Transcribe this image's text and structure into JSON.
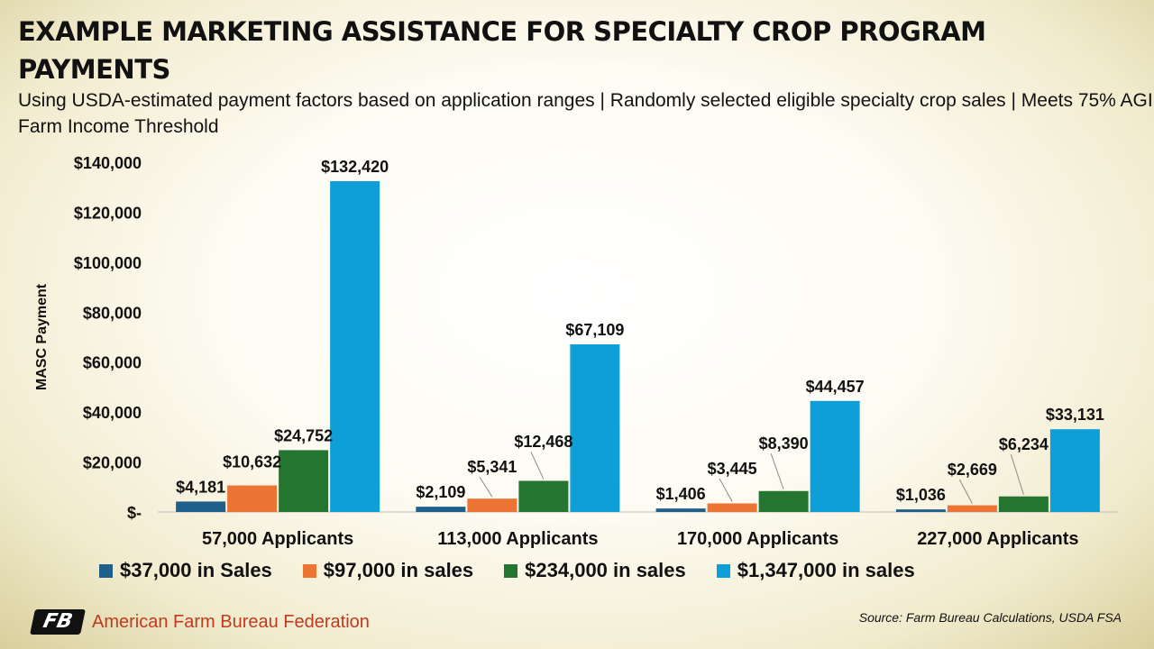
{
  "header": {
    "title": "EXAMPLE MARKETING ASSISTANCE FOR SPECIALTY CROP PROGRAM PAYMENTS",
    "subtitle": "Using USDA-estimated payment factors based on application ranges | Randomly selected eligible specialty crop sales | Meets 75% AGI Farm Income Threshold"
  },
  "chart_data": {
    "type": "bar",
    "title": "EXAMPLE MARKETING ASSISTANCE FOR SPECIALTY CROP PROGRAM PAYMENTS",
    "ylabel": "MASC Payment",
    "xlabel": "",
    "ylim": [
      0,
      140000
    ],
    "yticks": [
      0,
      20000,
      40000,
      60000,
      80000,
      100000,
      120000,
      140000
    ],
    "ytick_labels": [
      "$-",
      "$20,000",
      "$40,000",
      "$60,000",
      "$80,000",
      "$100,000",
      "$120,000",
      "$140,000"
    ],
    "categories": [
      "57,000 Applicants",
      "113,000 Applicants",
      "170,000 Applicants",
      "227,000 Applicants"
    ],
    "series": [
      {
        "name": "$37,000 in Sales",
        "color": "#1f5f8b",
        "values": [
          4181,
          2109,
          1406,
          1036
        ],
        "labels": [
          "$4,181",
          "$2,109",
          "$1,406",
          "$1,036"
        ]
      },
      {
        "name": "$97,000 in sales",
        "color": "#ec7434",
        "values": [
          10632,
          5341,
          3445,
          2669
        ],
        "labels": [
          "$10,632",
          "$5,341",
          "$3,445",
          "$2,669"
        ]
      },
      {
        "name": "$234,000 in sales",
        "color": "#237530",
        "values": [
          24752,
          12468,
          8390,
          6234
        ],
        "labels": [
          "$24,752",
          "$12,468",
          "$8,390",
          "$6,234"
        ]
      },
      {
        "name": "$1,347,000 in sales",
        "color": "#0f9fd8",
        "values": [
          132420,
          67109,
          44457,
          33131
        ],
        "labels": [
          "$132,420",
          "$67,109",
          "$44,457",
          "$33,131"
        ]
      }
    ],
    "legend": "bottom",
    "grid": false
  },
  "footer": {
    "logo_mark": "FB",
    "org_name": "American Farm Bureau Federation",
    "source": "Source: Farm Bureau Calculations, USDA FSA"
  }
}
